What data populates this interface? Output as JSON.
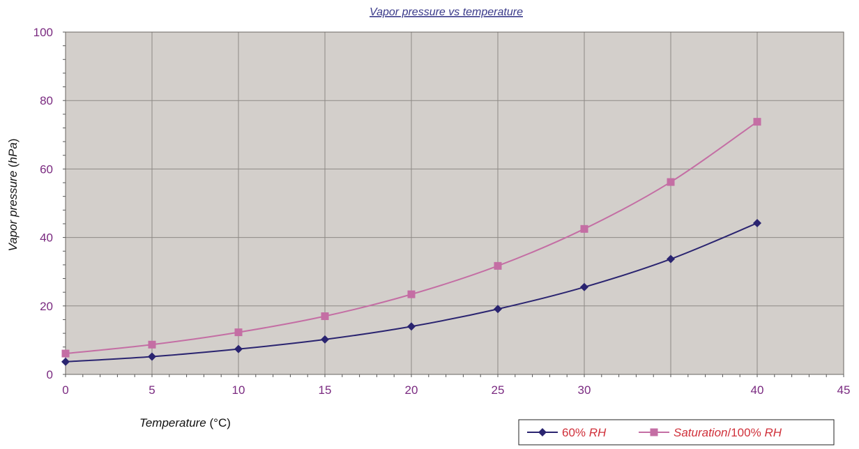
{
  "chart_data": {
    "type": "line",
    "title": "Vapor pressure vs temperature",
    "xlabel": {
      "italic": "Temperature",
      "normal": " (°C)"
    },
    "ylabel": {
      "italic": "Vapor pressure",
      "normal": " (",
      "italic2": "hPa",
      "normal2": ")"
    },
    "xlim": [
      0,
      45
    ],
    "ylim": [
      0,
      100
    ],
    "x_ticks": [
      0,
      5,
      10,
      15,
      20,
      25,
      30,
      35,
      40,
      45
    ],
    "x_tick_labels": [
      "0",
      "5",
      "10",
      "15",
      "20",
      "25",
      "30",
      "",
      "40",
      "45"
    ],
    "y_ticks": [
      0,
      20,
      40,
      60,
      80,
      100
    ],
    "y_tick_labels": [
      "0",
      "20",
      "40",
      "60",
      "80",
      "100"
    ],
    "grid": true,
    "legend_position": "bottom-right",
    "series": [
      {
        "name": "60% RH",
        "name_parts": [
          {
            "t": "60% ",
            "i": false
          },
          {
            "t": "RH",
            "i": true
          }
        ],
        "color": "#2a2470",
        "marker": "diamond",
        "x": [
          0,
          5,
          10,
          15,
          20,
          25,
          30,
          35,
          40
        ],
        "values": [
          3.7,
          5.2,
          7.4,
          10.2,
          14.0,
          19.1,
          25.5,
          33.7,
          44.2
        ]
      },
      {
        "name": "Saturation/100% RH",
        "name_parts": [
          {
            "t": "Saturation",
            "i": true
          },
          {
            "t": "/100% ",
            "i": false
          },
          {
            "t": "RH",
            "i": true
          }
        ],
        "color": "#c46ea4",
        "marker": "square",
        "x": [
          0,
          5,
          10,
          15,
          20,
          25,
          30,
          35,
          40
        ],
        "values": [
          6.1,
          8.7,
          12.3,
          17.0,
          23.4,
          31.7,
          42.5,
          56.2,
          73.8
        ]
      }
    ]
  },
  "colors": {
    "plot_background": "#d3cfcb",
    "grid": "#8e8a86",
    "tick_label": "#7a2a80",
    "title": "#3a3a8a",
    "legend_text": "#d0303a"
  }
}
